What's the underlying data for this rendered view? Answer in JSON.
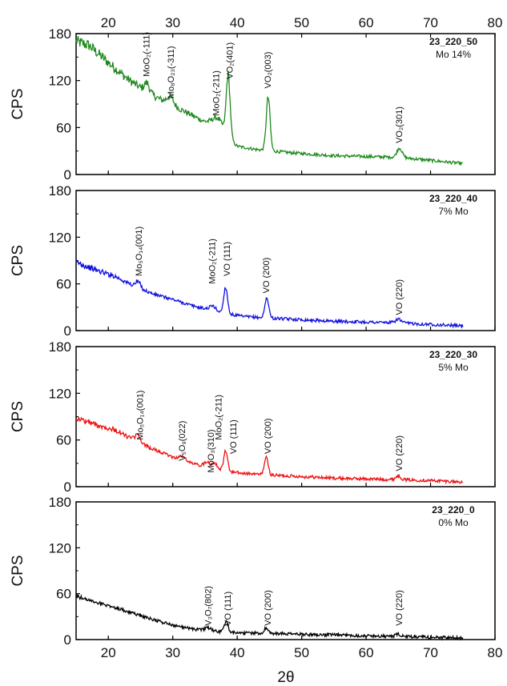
{
  "figure": {
    "x_title": "2θ",
    "y_title": "CPS"
  },
  "chart_data": [
    {
      "type": "line",
      "sample": "23_220_50",
      "composition": "Mo 14%",
      "color": "#1f8a1f",
      "xlim": [
        15,
        80
      ],
      "ylim": [
        0,
        180
      ],
      "x_ticks": [
        20,
        30,
        40,
        50,
        60,
        70,
        80
      ],
      "y_ticks": [
        0,
        60,
        120,
        180
      ],
      "xlabel": "2θ",
      "ylabel": "CPS",
      "baseline": [
        [
          15,
          170
        ],
        [
          17,
          165
        ],
        [
          20,
          143
        ],
        [
          23,
          122
        ],
        [
          26,
          105
        ],
        [
          29,
          92
        ],
        [
          32,
          80
        ],
        [
          35,
          67
        ],
        [
          37,
          60
        ],
        [
          40,
          36
        ],
        [
          43,
          32
        ],
        [
          48,
          28
        ],
        [
          55,
          24
        ],
        [
          65,
          22
        ],
        [
          75,
          14
        ]
      ],
      "peaks": [
        [
          26,
          12,
          0.4
        ],
        [
          29.6,
          10,
          0.5
        ],
        [
          37,
          12,
          0.9
        ],
        [
          38.6,
          78,
          0.3
        ],
        [
          44.8,
          68,
          0.3
        ],
        [
          65.2,
          12,
          0.4
        ]
      ],
      "peak_labels": [
        {
          "text": "MoO₂(-111)",
          "x": 26,
          "y": 125
        },
        {
          "text": "Mo₈O₂₃(-311)",
          "x": 29.8,
          "y": 97
        },
        {
          "text": "MoO₂(-211)",
          "x": 36.8,
          "y": 75
        },
        {
          "text": "VO₂(401)",
          "x": 38.9,
          "y": 122
        },
        {
          "text": "VO₂(003)",
          "x": 44.8,
          "y": 110
        },
        {
          "text": "VO₂(301)",
          "x": 65.2,
          "y": 40
        }
      ]
    },
    {
      "type": "line",
      "sample": "23_220_40",
      "composition": "7% Mo",
      "color": "#1010e0",
      "xlim": [
        15,
        80
      ],
      "ylim": [
        0,
        180
      ],
      "x_ticks": [
        20,
        30,
        40,
        50,
        60,
        70,
        80
      ],
      "y_ticks": [
        0,
        60,
        120,
        180
      ],
      "xlabel": "2θ",
      "ylabel": "CPS",
      "baseline": [
        [
          15,
          88
        ],
        [
          18,
          78
        ],
        [
          21,
          70
        ],
        [
          24,
          57
        ],
        [
          27,
          47
        ],
        [
          30,
          40
        ],
        [
          33,
          32
        ],
        [
          36,
          26
        ],
        [
          38,
          22
        ],
        [
          41,
          18
        ],
        [
          45,
          16
        ],
        [
          50,
          14
        ],
        [
          55,
          12
        ],
        [
          60,
          11
        ],
        [
          65,
          10
        ],
        [
          70,
          8
        ],
        [
          75,
          6
        ]
      ],
      "peaks": [
        [
          24.6,
          8,
          0.4
        ],
        [
          36.2,
          6,
          0.5
        ],
        [
          38.2,
          34,
          0.3
        ],
        [
          44.6,
          26,
          0.3
        ],
        [
          65,
          5,
          0.4
        ]
      ],
      "peak_labels": [
        {
          "text": "Mo₅O₁₄(001)",
          "x": 24.8,
          "y": 70
        },
        {
          "text": "MoO₂(-211)",
          "x": 36.2,
          "y": 60
        },
        {
          "text": "VO (111)",
          "x": 38.5,
          "y": 70
        },
        {
          "text": "VO (200)",
          "x": 44.6,
          "y": 48
        },
        {
          "text": "VO (220)",
          "x": 65.2,
          "y": 20
        }
      ]
    },
    {
      "type": "line",
      "sample": "23_220_30",
      "composition": "5% Mo",
      "color": "#ee1111",
      "xlim": [
        15,
        80
      ],
      "ylim": [
        0,
        180
      ],
      "x_ticks": [
        20,
        30,
        40,
        50,
        60,
        70,
        80
      ],
      "y_ticks": [
        0,
        60,
        120,
        180
      ],
      "xlabel": "2θ",
      "ylabel": "CPS",
      "baseline": [
        [
          15,
          88
        ],
        [
          18,
          80
        ],
        [
          21,
          73
        ],
        [
          24,
          60
        ],
        [
          27,
          48
        ],
        [
          30,
          38
        ],
        [
          33,
          30
        ],
        [
          36,
          24
        ],
        [
          38,
          20
        ],
        [
          41,
          17
        ],
        [
          45,
          15
        ],
        [
          50,
          13
        ],
        [
          55,
          11
        ],
        [
          60,
          10
        ],
        [
          65,
          9
        ],
        [
          70,
          8
        ],
        [
          75,
          6
        ]
      ],
      "peaks": [
        [
          24.5,
          8,
          0.4
        ],
        [
          31.5,
          5,
          0.5
        ],
        [
          35.3,
          7,
          0.4
        ],
        [
          36.5,
          8,
          0.4
        ],
        [
          38.2,
          26,
          0.3
        ],
        [
          44.5,
          22,
          0.3
        ],
        [
          65,
          5,
          0.4
        ]
      ],
      "peak_labels": [
        {
          "text": "Mo₅O₁₄(001)",
          "x": 25,
          "y": 60
        },
        {
          "text": "V₅O₉(022)",
          "x": 31.5,
          "y": 33
        },
        {
          "text": "MoO₃(310)",
          "x": 36,
          "y": 18
        },
        {
          "text": "MoO₂(-211)",
          "x": 37.2,
          "y": 60
        },
        {
          "text": "VO (111)",
          "x": 39.5,
          "y": 42
        },
        {
          "text": "VO (200)",
          "x": 44.8,
          "y": 42
        },
        {
          "text": "VO (220)",
          "x": 65.2,
          "y": 20
        }
      ]
    },
    {
      "type": "line",
      "sample": "23_220_0",
      "composition": "0% Mo",
      "color": "#000000",
      "xlim": [
        15,
        80
      ],
      "ylim": [
        0,
        180
      ],
      "x_ticks": [
        20,
        30,
        40,
        50,
        60,
        70,
        80
      ],
      "y_ticks": [
        0,
        60,
        120,
        180
      ],
      "xlabel": "2θ",
      "ylabel": "CPS",
      "baseline": [
        [
          15,
          57
        ],
        [
          18,
          49
        ],
        [
          21,
          42
        ],
        [
          24,
          34
        ],
        [
          27,
          26
        ],
        [
          30,
          19
        ],
        [
          33,
          14
        ],
        [
          36,
          11
        ],
        [
          40,
          9
        ],
        [
          45,
          8
        ],
        [
          50,
          7
        ],
        [
          55,
          6
        ],
        [
          60,
          5
        ],
        [
          65,
          4
        ],
        [
          70,
          3
        ],
        [
          75,
          2
        ]
      ],
      "peaks": [
        [
          35.5,
          4,
          0.5
        ],
        [
          38.3,
          13,
          0.3
        ],
        [
          44.5,
          7,
          0.3
        ],
        [
          65,
          3,
          0.4
        ]
      ],
      "peak_labels": [
        {
          "text": "V₃O₇(802)",
          "x": 35.6,
          "y": 18
        },
        {
          "text": "VO (111)",
          "x": 38.6,
          "y": 18
        },
        {
          "text": "VO (200)",
          "x": 44.8,
          "y": 18
        },
        {
          "text": "VO (220)",
          "x": 65.2,
          "y": 18
        }
      ]
    }
  ]
}
